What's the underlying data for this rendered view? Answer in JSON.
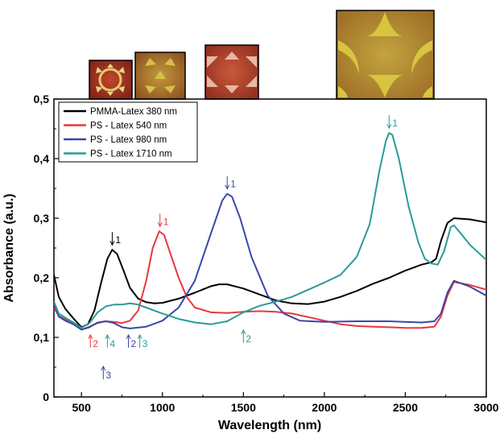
{
  "chart_data": {
    "type": "line",
    "xlabel": "Wavelength (nm)",
    "ylabel": "Absorbance (a.u.)",
    "xlim": [
      330,
      3000
    ],
    "ylim": [
      0,
      0.5
    ],
    "xticks": [
      500,
      1000,
      1500,
      2000,
      2500,
      3000
    ],
    "yticks": [
      0,
      0.1,
      0.2,
      0.3,
      0.4,
      0.5
    ],
    "xtick_labels": [
      "500",
      "1000",
      "1500",
      "2000",
      "2500",
      "3000"
    ],
    "ytick_labels": [
      "0",
      "0,1",
      "0,2",
      "0,3",
      "0,4",
      "0,5"
    ],
    "legend_position": "top-left",
    "series": [
      {
        "name": "PMMA-Latex 380 nm",
        "color": "#000000",
        "points": [
          [
            330,
            0.205
          ],
          [
            360,
            0.168
          ],
          [
            400,
            0.148
          ],
          [
            450,
            0.132
          ],
          [
            500,
            0.117
          ],
          [
            540,
            0.122
          ],
          [
            580,
            0.145
          ],
          [
            620,
            0.19
          ],
          [
            660,
            0.232
          ],
          [
            690,
            0.247
          ],
          [
            720,
            0.24
          ],
          [
            760,
            0.212
          ],
          [
            800,
            0.183
          ],
          [
            850,
            0.165
          ],
          [
            900,
            0.159
          ],
          [
            950,
            0.157
          ],
          [
            1000,
            0.158
          ],
          [
            1100,
            0.165
          ],
          [
            1200,
            0.175
          ],
          [
            1300,
            0.186
          ],
          [
            1350,
            0.189
          ],
          [
            1400,
            0.189
          ],
          [
            1500,
            0.182
          ],
          [
            1600,
            0.172
          ],
          [
            1700,
            0.162
          ],
          [
            1800,
            0.157
          ],
          [
            1900,
            0.156
          ],
          [
            2000,
            0.16
          ],
          [
            2100,
            0.168
          ],
          [
            2200,
            0.178
          ],
          [
            2300,
            0.19
          ],
          [
            2400,
            0.2
          ],
          [
            2500,
            0.212
          ],
          [
            2600,
            0.222
          ],
          [
            2660,
            0.226
          ],
          [
            2690,
            0.232
          ],
          [
            2720,
            0.262
          ],
          [
            2760,
            0.292
          ],
          [
            2800,
            0.3
          ],
          [
            2900,
            0.298
          ],
          [
            3000,
            0.293
          ]
        ]
      },
      {
        "name": "PS - Latex 540 nm",
        "color": "#e8383d",
        "points": [
          [
            330,
            0.15
          ],
          [
            360,
            0.136
          ],
          [
            400,
            0.13
          ],
          [
            450,
            0.125
          ],
          [
            500,
            0.113
          ],
          [
            550,
            0.118
          ],
          [
            600,
            0.124
          ],
          [
            650,
            0.127
          ],
          [
            700,
            0.126
          ],
          [
            750,
            0.124
          ],
          [
            800,
            0.128
          ],
          [
            850,
            0.145
          ],
          [
            900,
            0.195
          ],
          [
            940,
            0.25
          ],
          [
            980,
            0.278
          ],
          [
            1010,
            0.272
          ],
          [
            1050,
            0.24
          ],
          [
            1100,
            0.2
          ],
          [
            1150,
            0.168
          ],
          [
            1200,
            0.15
          ],
          [
            1300,
            0.142
          ],
          [
            1400,
            0.141
          ],
          [
            1500,
            0.143
          ],
          [
            1600,
            0.144
          ],
          [
            1700,
            0.143
          ],
          [
            1800,
            0.14
          ],
          [
            1900,
            0.134
          ],
          [
            2000,
            0.128
          ],
          [
            2100,
            0.122
          ],
          [
            2200,
            0.119
          ],
          [
            2300,
            0.118
          ],
          [
            2400,
            0.117
          ],
          [
            2500,
            0.116
          ],
          [
            2600,
            0.116
          ],
          [
            2680,
            0.118
          ],
          [
            2720,
            0.135
          ],
          [
            2760,
            0.17
          ],
          [
            2800,
            0.193
          ],
          [
            2900,
            0.188
          ],
          [
            3000,
            0.18
          ]
        ]
      },
      {
        "name": "PS - Latex 980 nm",
        "color": "#3b47a8",
        "points": [
          [
            330,
            0.157
          ],
          [
            360,
            0.135
          ],
          [
            400,
            0.128
          ],
          [
            450,
            0.122
          ],
          [
            500,
            0.113
          ],
          [
            550,
            0.117
          ],
          [
            600,
            0.125
          ],
          [
            650,
            0.127
          ],
          [
            700,
            0.124
          ],
          [
            750,
            0.117
          ],
          [
            800,
            0.115
          ],
          [
            900,
            0.118
          ],
          [
            1000,
            0.128
          ],
          [
            1100,
            0.15
          ],
          [
            1200,
            0.195
          ],
          [
            1300,
            0.275
          ],
          [
            1370,
            0.33
          ],
          [
            1400,
            0.341
          ],
          [
            1430,
            0.336
          ],
          [
            1480,
            0.3
          ],
          [
            1550,
            0.235
          ],
          [
            1650,
            0.17
          ],
          [
            1750,
            0.14
          ],
          [
            1850,
            0.128
          ],
          [
            2000,
            0.126
          ],
          [
            2200,
            0.127
          ],
          [
            2400,
            0.127
          ],
          [
            2600,
            0.125
          ],
          [
            2680,
            0.127
          ],
          [
            2720,
            0.14
          ],
          [
            2760,
            0.175
          ],
          [
            2800,
            0.195
          ],
          [
            2900,
            0.185
          ],
          [
            3000,
            0.17
          ]
        ]
      },
      {
        "name": "PS - Latex 1710 nm",
        "color": "#2a9a9a",
        "points": [
          [
            330,
            0.16
          ],
          [
            360,
            0.14
          ],
          [
            400,
            0.133
          ],
          [
            450,
            0.125
          ],
          [
            500,
            0.116
          ],
          [
            550,
            0.124
          ],
          [
            600,
            0.142
          ],
          [
            650,
            0.152
          ],
          [
            700,
            0.155
          ],
          [
            750,
            0.155
          ],
          [
            800,
            0.157
          ],
          [
            850,
            0.155
          ],
          [
            900,
            0.15
          ],
          [
            1000,
            0.14
          ],
          [
            1100,
            0.131
          ],
          [
            1200,
            0.125
          ],
          [
            1300,
            0.122
          ],
          [
            1400,
            0.127
          ],
          [
            1500,
            0.142
          ],
          [
            1600,
            0.153
          ],
          [
            1700,
            0.16
          ],
          [
            1800,
            0.168
          ],
          [
            1900,
            0.18
          ],
          [
            2000,
            0.192
          ],
          [
            2100,
            0.205
          ],
          [
            2200,
            0.235
          ],
          [
            2280,
            0.29
          ],
          [
            2340,
            0.38
          ],
          [
            2380,
            0.43
          ],
          [
            2400,
            0.443
          ],
          [
            2420,
            0.44
          ],
          [
            2460,
            0.4
          ],
          [
            2520,
            0.32
          ],
          [
            2580,
            0.26
          ],
          [
            2620,
            0.232
          ],
          [
            2660,
            0.224
          ],
          [
            2700,
            0.222
          ],
          [
            2740,
            0.245
          ],
          [
            2780,
            0.285
          ],
          [
            2800,
            0.288
          ],
          [
            2850,
            0.272
          ],
          [
            2900,
            0.255
          ],
          [
            3000,
            0.23
          ]
        ]
      }
    ],
    "annotations": [
      {
        "label": "1",
        "x": 690,
        "y": 0.247,
        "dir": "down",
        "color": "#000000"
      },
      {
        "label": "1",
        "x": 985,
        "y": 0.278,
        "dir": "down",
        "color": "#e8383d"
      },
      {
        "label": "1",
        "x": 1400,
        "y": 0.341,
        "dir": "down",
        "color": "#3b47a8"
      },
      {
        "label": "1",
        "x": 2400,
        "y": 0.443,
        "dir": "down",
        "color": "#2a9a9a"
      },
      {
        "label": "2",
        "x": 555,
        "y": 0.107,
        "dir": "up",
        "color": "#e8383d"
      },
      {
        "label": "4",
        "x": 660,
        "y": 0.107,
        "dir": "up",
        "color": "#2a9a9a"
      },
      {
        "label": "2",
        "x": 790,
        "y": 0.107,
        "dir": "up",
        "color": "#3b47a8"
      },
      {
        "label": "3",
        "x": 860,
        "y": 0.107,
        "dir": "up",
        "color": "#2a9a9a"
      },
      {
        "label": "2",
        "x": 1500,
        "y": 0.115,
        "dir": "up",
        "color": "#2a9a9a"
      },
      {
        "label": "3",
        "x": 635,
        "y": 0.054,
        "dir": "up",
        "color": "#3b47a8"
      }
    ]
  },
  "insets": [
    {
      "pattern": "hex-small"
    },
    {
      "pattern": "hex-medium"
    },
    {
      "pattern": "hex-large"
    },
    {
      "pattern": "hex-xlarge"
    }
  ]
}
